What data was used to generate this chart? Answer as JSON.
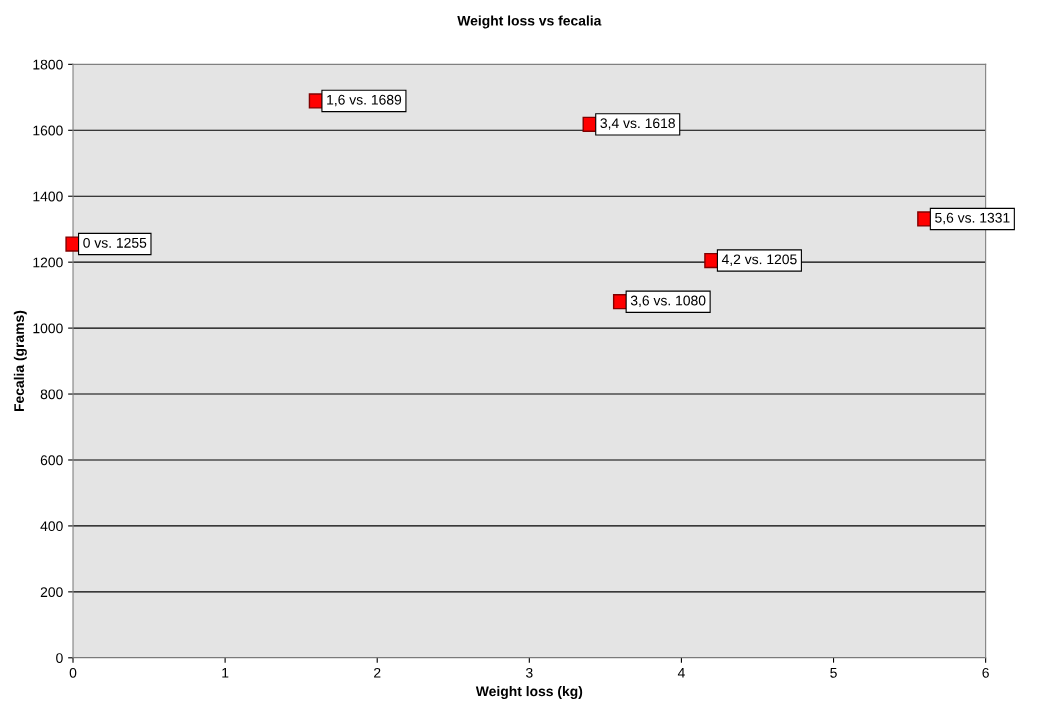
{
  "chart_data": {
    "type": "scatter",
    "title": "Weight loss vs fecalia",
    "xlabel": "Weight loss (kg)",
    "ylabel": "Fecalia (grams)",
    "x": [
      0,
      1.6,
      3.4,
      3.6,
      4.2,
      5.6
    ],
    "series": [
      {
        "color": "#ff0000",
        "values": [
          1255,
          1689,
          1618,
          1080,
          1205,
          1331
        ],
        "value_labels": [
          "0 vs. 1255",
          "1,6 vs. 1689",
          "3,4 vs. 1618",
          "3,6 vs. 1080",
          "4,2 vs. 1205",
          "5,6 vs. 1331"
        ]
      }
    ],
    "xlim": [
      0,
      6
    ],
    "xticks": [
      0,
      1,
      2,
      3,
      4,
      5,
      6
    ],
    "ylim": [
      0,
      1800
    ],
    "yticks": [
      0,
      200,
      400,
      600,
      800,
      1000,
      1200,
      1400,
      1600,
      1800
    ],
    "grid": "y",
    "marker": "square",
    "legend": false
  }
}
